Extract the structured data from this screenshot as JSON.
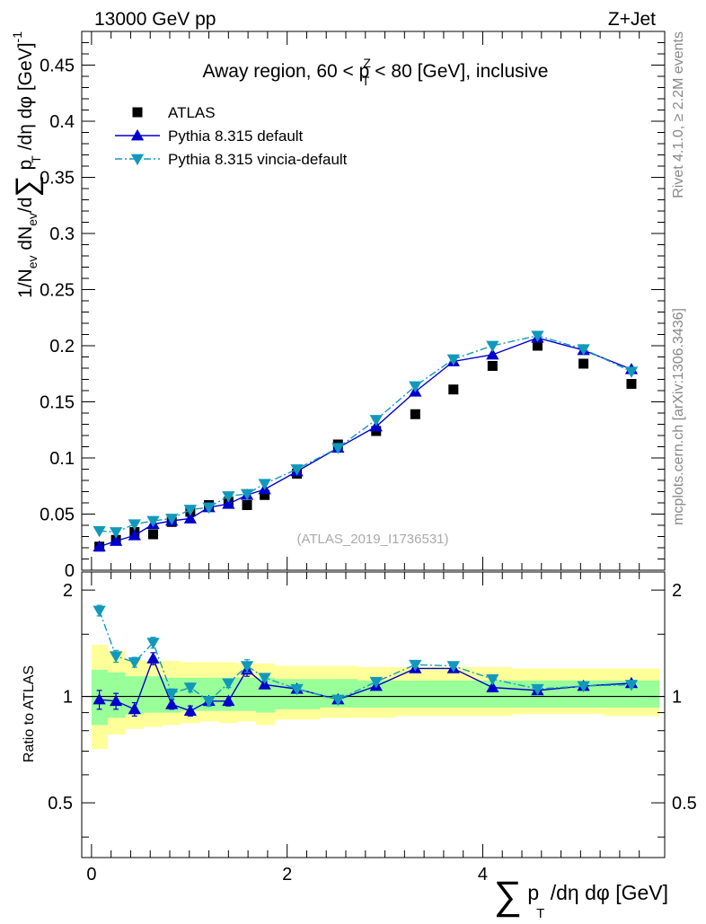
{
  "header": {
    "energy_label": "13000 GeV pp",
    "process_label": "Z+Jet"
  },
  "side_text": {
    "rivet": "Rivet 4.1.0, ≥ 2.2M events",
    "mcplots": "mcplots.cern.ch [arXiv:1306.3436]"
  },
  "chart_data": [
    {
      "type": "scatter",
      "panel": "main",
      "title": "Away region, 60 < p_T^Z < 80 [GeV], inclusive",
      "title_parts": {
        "pre": "Away region, 60 < p",
        "sup": "Z",
        "sub": "T",
        "post": " < 80 [GeV], inclusive"
      },
      "ylabel": "1/N_ev dN_ev/d∑p_T/dη dφ [GeV]^-1",
      "ylabel_parts": {
        "a": "1/N",
        "ev1": "ev",
        "b": " dN",
        "ev2": "ev",
        "c": "/d",
        "sum": "∑",
        "d": " p",
        "t": "T",
        "e": " /dη dφ  [GeV]",
        "exp": "-1"
      },
      "watermark": "(ATLAS_2019_I1736531)",
      "xlim": [
        -0.1,
        5.86
      ],
      "ylim": [
        0,
        0.48
      ],
      "ytick_labels": [
        "0",
        "0.05",
        "0.1",
        "0.15",
        "0.2",
        "0.25",
        "0.3",
        "0.35",
        "0.4",
        "0.45"
      ],
      "ytick_values": [
        0,
        0.05,
        0.1,
        0.15,
        0.2,
        0.25,
        0.3,
        0.35,
        0.4,
        0.45
      ],
      "legend_position": "top-left",
      "x_centers": [
        0.08,
        0.25,
        0.44,
        0.63,
        0.82,
        1.01,
        1.2,
        1.4,
        1.59,
        1.77,
        2.1,
        2.52,
        2.91,
        3.31,
        3.7,
        4.1,
        4.56,
        5.03,
        5.52
      ],
      "series": [
        {
          "name": "ATLAS",
          "style": "data",
          "color": "#000000",
          "values": [
            0.021,
            0.027,
            0.034,
            0.032,
            0.043,
            0.052,
            0.058,
            0.061,
            0.058,
            0.067,
            0.086,
            0.112,
            0.124,
            0.139,
            0.161,
            0.182,
            0.2,
            0.184,
            0.166
          ]
        },
        {
          "name": "Pythia 8.315 default",
          "style": "solid-up",
          "color": "#0000cc",
          "values": [
            0.021,
            0.026,
            0.031,
            0.041,
            0.044,
            0.046,
            0.056,
            0.059,
            0.067,
            0.072,
            0.088,
            0.109,
            0.128,
            0.159,
            0.186,
            0.192,
            0.207,
            0.196,
            0.179
          ]
        },
        {
          "name": "Pythia 8.315 vincia-default",
          "style": "dashdot-down",
          "color": "#1199bb",
          "values": [
            0.035,
            0.034,
            0.041,
            0.044,
            0.046,
            0.054,
            0.056,
            0.066,
            0.068,
            0.077,
            0.09,
            0.109,
            0.134,
            0.164,
            0.188,
            0.2,
            0.209,
            0.197,
            0.177
          ]
        }
      ]
    },
    {
      "type": "scatter",
      "panel": "ratio",
      "ylabel": "Ratio to ATLAS",
      "xlabel": "∑ p_T /dη dφ [GeV]",
      "xlabel_parts": {
        "sum": "∑",
        "a": " p",
        "t": "T",
        "b": " /dη dφ [GeV]"
      },
      "xlim": [
        -0.1,
        5.86
      ],
      "ylim": [
        0.35,
        2.25
      ],
      "ytick_labels": [
        "0.5",
        "1",
        "2"
      ],
      "ytick_values": [
        0.5,
        1,
        2
      ],
      "xtick_labels": [
        "0",
        "2",
        "4"
      ],
      "xtick_values": [
        0,
        2,
        4
      ],
      "bins": [
        [
          0.0,
          0.16
        ],
        [
          0.16,
          0.34
        ],
        [
          0.34,
          0.53
        ],
        [
          0.53,
          0.72
        ],
        [
          0.72,
          0.91
        ],
        [
          0.91,
          1.1
        ],
        [
          1.1,
          1.3
        ],
        [
          1.3,
          1.49
        ],
        [
          1.49,
          1.68
        ],
        [
          1.68,
          1.87
        ],
        [
          1.87,
          2.33
        ],
        [
          2.33,
          2.72
        ],
        [
          2.72,
          3.11
        ],
        [
          3.11,
          3.5
        ],
        [
          3.5,
          3.9
        ],
        [
          3.9,
          4.3
        ],
        [
          4.3,
          4.82
        ],
        [
          4.82,
          5.24
        ],
        [
          5.24,
          5.8
        ]
      ],
      "band_yellow": [
        [
          0.71,
          1.4
        ],
        [
          0.78,
          1.35
        ],
        [
          0.81,
          1.27
        ],
        [
          0.82,
          1.26
        ],
        [
          0.83,
          1.26
        ],
        [
          0.84,
          1.25
        ],
        [
          0.85,
          1.25
        ],
        [
          0.84,
          1.25
        ],
        [
          0.85,
          1.24
        ],
        [
          0.83,
          1.24
        ],
        [
          0.86,
          1.22
        ],
        [
          0.87,
          1.22
        ],
        [
          0.87,
          1.21
        ],
        [
          0.88,
          1.21
        ],
        [
          0.88,
          1.21
        ],
        [
          0.88,
          1.21
        ],
        [
          0.89,
          1.2
        ],
        [
          0.89,
          1.2
        ],
        [
          0.88,
          1.2
        ]
      ],
      "band_green": [
        [
          0.83,
          1.19
        ],
        [
          0.87,
          1.17
        ],
        [
          0.89,
          1.14
        ],
        [
          0.9,
          1.14
        ],
        [
          0.9,
          1.13
        ],
        [
          0.91,
          1.13
        ],
        [
          0.91,
          1.13
        ],
        [
          0.91,
          1.13
        ],
        [
          0.91,
          1.13
        ],
        [
          0.9,
          1.13
        ],
        [
          0.92,
          1.12
        ],
        [
          0.93,
          1.12
        ],
        [
          0.93,
          1.11
        ],
        [
          0.93,
          1.11
        ],
        [
          0.93,
          1.11
        ],
        [
          0.93,
          1.11
        ],
        [
          0.93,
          1.11
        ],
        [
          0.93,
          1.11
        ],
        [
          0.93,
          1.11
        ]
      ],
      "series": [
        {
          "name": "Pythia 8.315 default",
          "style": "solid-up",
          "color": "#0000cc",
          "values": [
            0.98,
            0.97,
            0.92,
            1.28,
            0.95,
            0.91,
            0.97,
            0.97,
            1.19,
            1.08,
            1.05,
            0.98,
            1.07,
            1.2,
            1.2,
            1.06,
            1.04,
            1.07,
            1.09
          ],
          "errors": [
            0.06,
            0.05,
            0.04,
            0.05,
            0.03,
            0.03,
            0.03,
            0.03,
            0.05,
            0.02,
            0.01,
            0.01,
            0.01,
            0.01,
            0.01,
            0.01,
            0.01,
            0.01,
            0.01
          ]
        },
        {
          "name": "Pythia 8.315 vincia-default",
          "style": "dashdot-down",
          "color": "#1199bb",
          "values": [
            1.75,
            1.3,
            1.25,
            1.42,
            1.02,
            1.06,
            0.97,
            1.09,
            1.22,
            1.13,
            1.05,
            0.98,
            1.1,
            1.23,
            1.22,
            1.12,
            1.05,
            1.07,
            1.08
          ],
          "errors": [
            0.06,
            0.05,
            0.04,
            0.05,
            0.03,
            0.03,
            0.03,
            0.03,
            0.05,
            0.02,
            0.01,
            0.01,
            0.01,
            0.01,
            0.01,
            0.01,
            0.01,
            0.01,
            0.01
          ]
        }
      ]
    }
  ]
}
